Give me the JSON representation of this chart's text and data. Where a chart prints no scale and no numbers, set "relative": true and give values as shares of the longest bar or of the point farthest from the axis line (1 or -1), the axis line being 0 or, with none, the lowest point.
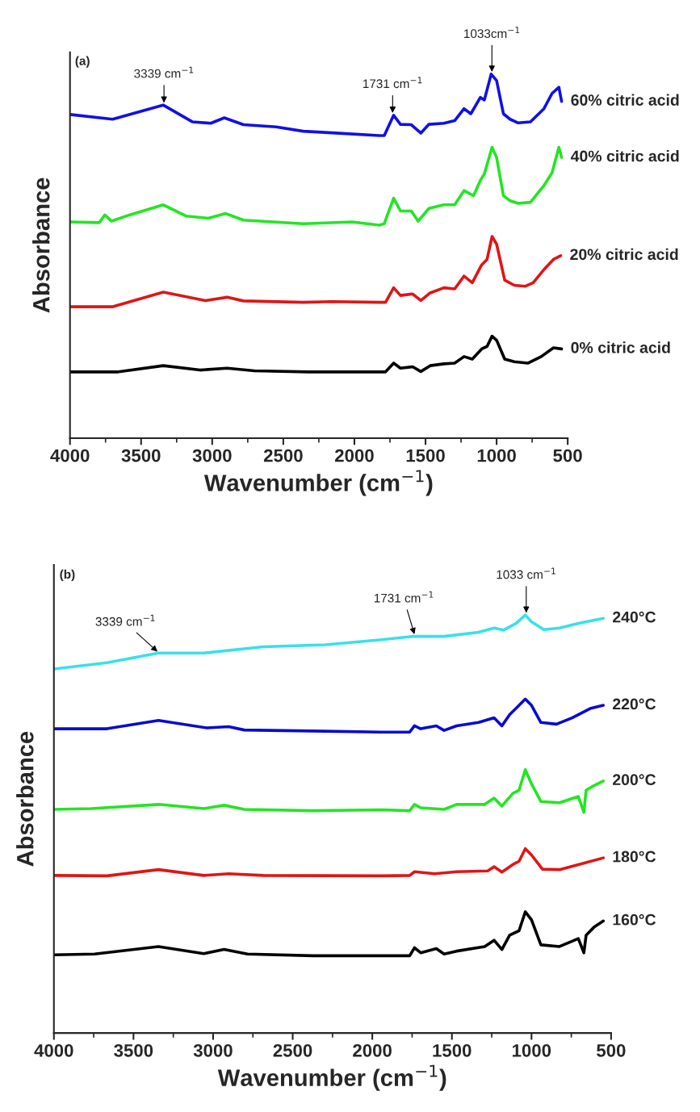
{
  "chart_data": [
    {
      "type": "line",
      "relative": true,
      "xlabel": "Wavenumber (cm$^{−1}$)",
      "ylabel": "Absorbance",
      "xlim": [
        4000,
        500
      ],
      "xticks": [
        4000,
        3500,
        3000,
        2500,
        2000,
        1500,
        1000,
        500
      ],
      "annotations": [
        "(a)",
        {
          "text": "3339 cm$^{−1}$",
          "x": 3339,
          "y": 0.915
        },
        {
          "text": "1731 cm$^{−1}$",
          "x": 1731,
          "y": 0.887
        },
        {
          "text": "1033cm$^{−1}$",
          "x": 1033,
          "y": 1.0
        }
      ],
      "series": [
        {
          "name": "60% citric acid",
          "color": "#1010e6",
          "x": [
            4000,
            3700,
            3345,
            3140,
            3010,
            2915,
            2780,
            2550,
            2360,
            2130,
            1825,
            1790,
            1724,
            1676,
            1600,
            1533,
            1476,
            1371,
            1295,
            1229,
            1181,
            1114,
            1086,
            1038,
            1000,
            952,
            905,
            848,
            762,
            667,
            610,
            562,
            543
          ],
          "values": [
            0.889,
            0.876,
            0.915,
            0.869,
            0.865,
            0.88,
            0.861,
            0.855,
            0.843,
            0.838,
            0.831,
            0.831,
            0.887,
            0.862,
            0.861,
            0.838,
            0.862,
            0.865,
            0.872,
            0.905,
            0.891,
            0.936,
            0.929,
            1.0,
            0.982,
            0.891,
            0.876,
            0.866,
            0.869,
            0.905,
            0.947,
            0.964,
            0.925
          ]
        },
        {
          "name": "40% citric acid",
          "color": "#22e622",
          "x": [
            4000,
            3794,
            3755,
            3707,
            3583,
            3344,
            3182,
            3029,
            2905,
            2781,
            2360,
            2016,
            1825,
            1790,
            1724,
            1676,
            1600,
            1552,
            1476,
            1371,
            1295,
            1229,
            1162,
            1114,
            1086,
            1032,
            1000,
            952,
            905,
            848,
            762,
            667,
            610,
            562,
            543
          ],
          "values": [
            0.594,
            0.592,
            0.613,
            0.596,
            0.613,
            0.641,
            0.61,
            0.604,
            0.617,
            0.599,
            0.589,
            0.594,
            0.585,
            0.589,
            0.659,
            0.624,
            0.624,
            0.596,
            0.631,
            0.641,
            0.641,
            0.68,
            0.666,
            0.708,
            0.726,
            0.799,
            0.771,
            0.666,
            0.652,
            0.645,
            0.648,
            0.694,
            0.729,
            0.799,
            0.771
          ]
        },
        {
          "name": "20% citric acid",
          "color": "#e01515",
          "x": [
            4000,
            3698,
            3344,
            3048,
            2895,
            2781,
            2360,
            2158,
            1825,
            1781,
            1724,
            1676,
            1590,
            1533,
            1467,
            1371,
            1295,
            1229,
            1171,
            1105,
            1067,
            1032,
            1000,
            943,
            876,
            800,
            743,
            667,
            600,
            549
          ],
          "values": [
            0.361,
            0.361,
            0.401,
            0.378,
            0.387,
            0.377,
            0.373,
            0.375,
            0.373,
            0.373,
            0.413,
            0.392,
            0.396,
            0.378,
            0.399,
            0.413,
            0.41,
            0.445,
            0.427,
            0.476,
            0.491,
            0.554,
            0.533,
            0.434,
            0.42,
            0.417,
            0.427,
            0.463,
            0.491,
            0.501
          ]
        },
        {
          "name": "0% citric acid",
          "color": "#000000",
          "x": [
            4000,
            3660,
            3344,
            3086,
            2895,
            2704,
            2322,
            2131,
            1825,
            1781,
            1724,
            1676,
            1590,
            1533,
            1467,
            1371,
            1295,
            1229,
            1171,
            1105,
            1067,
            1032,
            1000,
            943,
            876,
            781,
            686,
            600,
            543
          ],
          "values": [
            0.182,
            0.182,
            0.199,
            0.187,
            0.192,
            0.185,
            0.182,
            0.182,
            0.182,
            0.182,
            0.206,
            0.192,
            0.196,
            0.183,
            0.199,
            0.204,
            0.206,
            0.224,
            0.217,
            0.245,
            0.252,
            0.28,
            0.269,
            0.217,
            0.21,
            0.206,
            0.224,
            0.248,
            0.245
          ]
        }
      ]
    },
    {
      "type": "line",
      "relative": true,
      "xlabel": "Wavenumber (cm$^{−1}$)",
      "ylabel": "Absorbance",
      "xlim": [
        4000,
        500
      ],
      "xticks": [
        4000,
        3500,
        3000,
        2500,
        2000,
        1500,
        1000,
        500
      ],
      "annotations": [
        "(b)",
        {
          "text": "3339 cm$^{−1}$",
          "x": 3339,
          "y": 0.909
        },
        {
          "text": "1731 cm$^{−1}$",
          "x": 1731,
          "y": 0.949
        },
        {
          "text": "1033 cm$^{−1}$",
          "x": 1033,
          "y": 1.0
        }
      ],
      "series": [
        {
          "name": "240°C",
          "color": "#38e0ea",
          "x": [
            4000,
            3667,
            3343,
            3059,
            2686,
            2294,
            1943,
            1745,
            1549,
            1333,
            1235,
            1176,
            1098,
            1039,
            1000,
            922,
            824,
            706,
            549
          ],
          "values": [
            0.871,
            0.886,
            0.909,
            0.909,
            0.924,
            0.929,
            0.941,
            0.949,
            0.949,
            0.959,
            0.969,
            0.964,
            0.98,
            1.0,
            0.984,
            0.965,
            0.969,
            0.98,
            0.992
          ]
        },
        {
          "name": "220°C",
          "color": "#0a0ad0",
          "x": [
            4000,
            3667,
            3343,
            3039,
            2902,
            2804,
            2294,
            1943,
            1765,
            1735,
            1696,
            1598,
            1549,
            1471,
            1333,
            1235,
            1186,
            1137,
            1078,
            1039,
            1000,
            941,
            843,
            745,
            627,
            549
          ],
          "values": [
            0.728,
            0.728,
            0.748,
            0.73,
            0.733,
            0.725,
            0.722,
            0.72,
            0.72,
            0.735,
            0.728,
            0.735,
            0.724,
            0.735,
            0.743,
            0.754,
            0.735,
            0.762,
            0.784,
            0.799,
            0.784,
            0.743,
            0.739,
            0.754,
            0.777,
            0.784
          ]
        },
        {
          "name": "200°C",
          "color": "#22e622",
          "x": [
            4000,
            3765,
            3343,
            3059,
            2931,
            2804,
            2373,
            1943,
            1765,
            1735,
            1696,
            1549,
            1471,
            1294,
            1235,
            1186,
            1118,
            1078,
            1039,
            1000,
            941,
            824,
            706,
            671,
            657,
            608,
            549
          ],
          "values": [
            0.535,
            0.537,
            0.547,
            0.537,
            0.545,
            0.535,
            0.532,
            0.534,
            0.532,
            0.547,
            0.539,
            0.535,
            0.547,
            0.547,
            0.562,
            0.543,
            0.573,
            0.581,
            0.63,
            0.596,
            0.554,
            0.551,
            0.566,
            0.528,
            0.581,
            0.592,
            0.603
          ]
        },
        {
          "name": "180°C",
          "color": "#e01515",
          "x": [
            4000,
            3667,
            3343,
            3059,
            2902,
            2686,
            1943,
            1765,
            1735,
            1608,
            1471,
            1275,
            1235,
            1186,
            1118,
            1078,
            1039,
            1000,
            931,
            824,
            706,
            549
          ],
          "values": [
            0.377,
            0.376,
            0.391,
            0.377,
            0.381,
            0.377,
            0.376,
            0.377,
            0.386,
            0.381,
            0.386,
            0.388,
            0.398,
            0.385,
            0.403,
            0.411,
            0.441,
            0.426,
            0.392,
            0.391,
            0.403,
            0.419
          ]
        },
        {
          "name": "160°C",
          "color": "#000000",
          "x": [
            4000,
            3745,
            3343,
            3059,
            2931,
            2784,
            2373,
            1943,
            1765,
            1735,
            1696,
            1598,
            1549,
            1471,
            1294,
            1235,
            1186,
            1137,
            1078,
            1039,
            1000,
            941,
            824,
            706,
            671,
            657,
            608,
            549
          ],
          "values": [
            0.187,
            0.189,
            0.207,
            0.19,
            0.2,
            0.189,
            0.185,
            0.185,
            0.185,
            0.204,
            0.192,
            0.202,
            0.189,
            0.196,
            0.207,
            0.222,
            0.2,
            0.234,
            0.245,
            0.29,
            0.271,
            0.211,
            0.207,
            0.226,
            0.192,
            0.234,
            0.253,
            0.268
          ]
        }
      ]
    }
  ]
}
